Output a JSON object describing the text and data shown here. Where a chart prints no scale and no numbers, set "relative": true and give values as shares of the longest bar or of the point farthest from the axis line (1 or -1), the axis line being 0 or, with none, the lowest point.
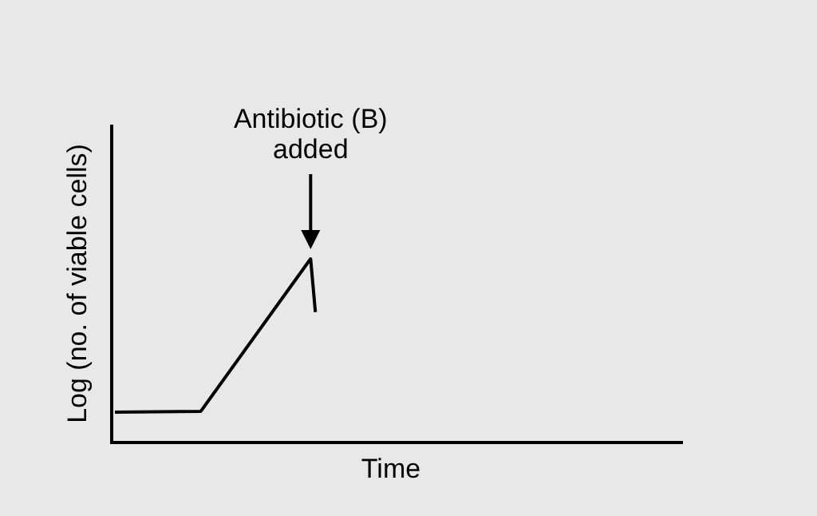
{
  "chart_data": {
    "type": "line",
    "relative": true,
    "xlabel": "Time",
    "ylabel": "Log (no. of viable cells)",
    "categories": [
      null,
      null,
      null,
      null,
      null,
      null,
      null,
      null,
      null,
      null,
      null,
      null,
      null,
      null,
      null,
      null,
      null,
      null,
      null,
      null,
      null,
      null,
      null,
      null,
      null,
      null,
      null,
      null,
      null,
      null,
      null,
      null,
      null,
      null,
      null,
      null,
      null,
      null,
      null,
      null,
      null,
      null,
      null,
      null,
      null,
      null,
      null,
      null,
      null,
      null,
      null,
      null,
      null,
      null,
      null,
      null,
      null,
      null,
      null,
      null,
      null,
      null,
      null,
      null,
      null,
      null,
      null,
      null,
      null,
      null,
      null,
      null,
      null,
      null,
      null,
      null,
      null,
      null,
      null,
      null,
      null,
      null,
      null,
      null,
      null,
      null,
      null,
      null,
      null,
      null,
      null,
      null,
      null,
      null,
      null,
      null,
      null,
      null,
      null,
      null,
      null,
      null,
      null,
      null,
      null,
      null,
      null,
      null,
      null,
      null,
      null,
      null,
      null,
      null,
      null,
      null,
      null,
      null,
      null,
      null
    ],
    "series": [
      {
        "color": "#000000",
        "values": [
          0.165,
          null,
          null,
          null,
          null,
          null,
          null,
          null,
          null,
          null,
          null,
          null,
          null,
          null,
          null,
          null,
          null,
          null,
          0.17,
          null,
          null,
          null,
          null,
          null,
          null,
          null,
          null,
          null,
          null,
          null,
          null,
          null,
          null,
          null,
          null,
          null,
          null,
          null,
          null,
          null,
          null,
          1,
          0.71,
          null,
          null,
          null,
          null,
          null,
          null,
          null,
          null,
          null,
          null,
          null,
          null,
          null,
          null,
          null,
          null,
          null,
          null,
          null,
          null,
          null,
          null,
          null,
          null,
          null,
          null,
          null,
          null,
          null,
          null,
          null,
          null,
          null,
          null,
          null,
          null,
          null,
          null,
          null,
          null,
          null,
          null,
          null,
          null,
          null,
          null,
          null,
          null,
          null,
          null,
          null,
          null,
          null,
          null,
          null,
          null,
          null,
          null,
          null,
          null,
          null,
          null,
          null,
          null,
          null,
          null,
          null,
          null,
          null,
          null,
          null,
          null,
          null,
          null,
          null,
          null,
          null
        ]
      }
    ],
    "grid": false,
    "marker": "none",
    "line_style": "solid",
    "annotations": [
      "Antibiotic (B)\nadded"
    ]
  }
}
